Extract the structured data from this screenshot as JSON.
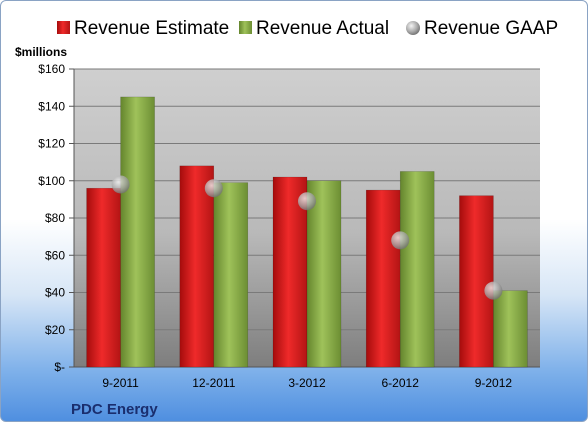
{
  "chart_data": {
    "type": "bar",
    "unit_label": "$millions",
    "company": "PDC Energy",
    "categories": [
      "9-2011",
      "12-2011",
      "3-2012",
      "6-2012",
      "9-2012"
    ],
    "series": [
      {
        "name": "Revenue Estimate",
        "kind": "bar",
        "color": "#e02020",
        "values": [
          96,
          108,
          102,
          95,
          92
        ]
      },
      {
        "name": "Revenue Actual",
        "kind": "bar",
        "color": "#8db04a",
        "values": [
          145,
          99,
          100,
          105,
          41
        ]
      },
      {
        "name": "Revenue GAAP",
        "kind": "marker",
        "color": "#b8b8b8",
        "values": [
          98,
          96,
          89,
          68,
          41
        ]
      }
    ],
    "y_ticks": [
      "$-",
      "$20",
      "$40",
      "$60",
      "$80",
      "$100",
      "$120",
      "$140",
      "$160"
    ],
    "ylim": [
      0,
      160
    ],
    "grid": true,
    "legend_position": "top"
  }
}
